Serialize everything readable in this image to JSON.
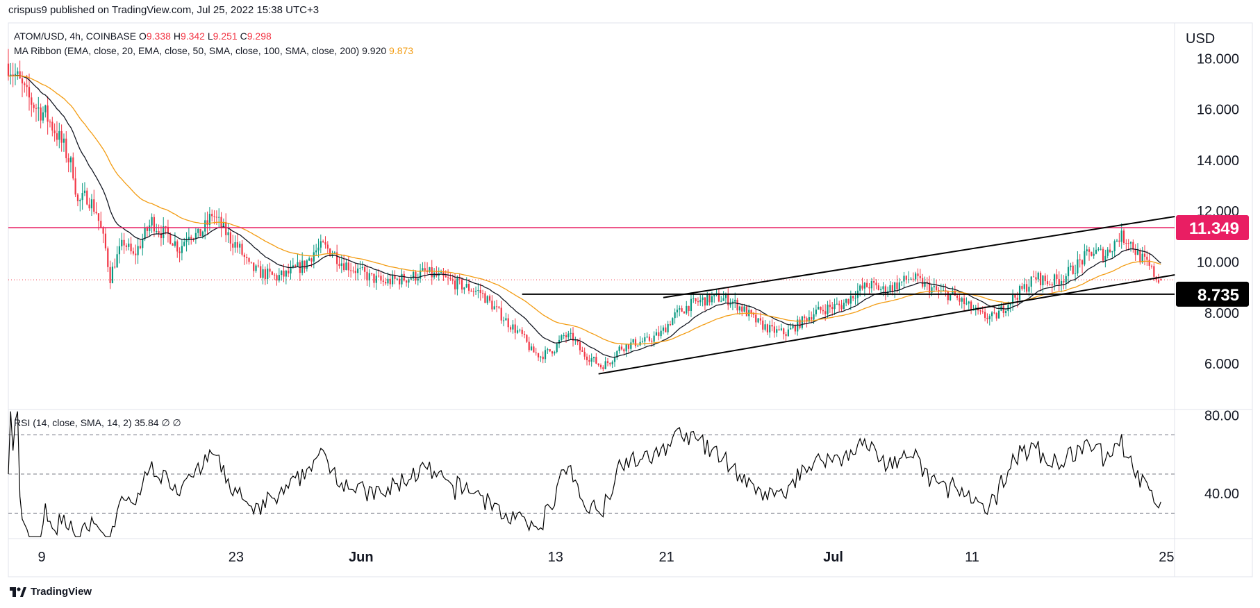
{
  "header": {
    "text": "crispus9 published on TradingView.com, Jul 25, 2022 15:38 UTC+3"
  },
  "legend": {
    "symbol_line": "ATOM/USD, 4h, COINBASE",
    "ohlc": [
      {
        "k": "O",
        "v": "9.338"
      },
      {
        "k": "H",
        "v": "9.342"
      },
      {
        "k": "L",
        "v": "9.251"
      },
      {
        "k": "C",
        "v": "9.298"
      }
    ],
    "ma_label": "MA Ribbon (EMA, close, 20, EMA, close, 50, SMA, close, 100, SMA, close, 200)",
    "ma_val1": "9.920",
    "ma_val2": "9.873",
    "rsi_label": "RSI (14, close, SMA, 14, 2)",
    "rsi_val": "35.84",
    "rsi_extra": "∅  ∅"
  },
  "footer": {
    "brand": "TradingView"
  },
  "colors": {
    "up": "#089981",
    "down": "#f23645",
    "ma_fast": "#131722",
    "ma_slow": "#f39c12",
    "resistance": "#e91e63",
    "support": "#000000",
    "grid_border": "#e0e3eb"
  },
  "chart_data": [
    {
      "type": "candlestick",
      "title": "ATOM/USD, 4h, COINBASE",
      "currency_label": "USD",
      "y_ticks": [
        "18.000",
        "16.000",
        "14.000",
        "12.000",
        "10.000",
        "8.000",
        "6.000"
      ],
      "y_tick_values": [
        18,
        16,
        14,
        12,
        10,
        8,
        6
      ],
      "ylim": [
        4.2,
        19.4
      ],
      "x_ticks": [
        {
          "label": "9",
          "bold": false
        },
        {
          "label": "23",
          "bold": false
        },
        {
          "label": "Jun",
          "bold": true
        },
        {
          "label": "13",
          "bold": false
        },
        {
          "label": "21",
          "bold": false
        },
        {
          "label": "Jul",
          "bold": true
        },
        {
          "label": "11",
          "bold": false
        },
        {
          "label": "25",
          "bold": false
        }
      ],
      "x_tick_index": [
        0,
        84,
        138,
        222,
        270,
        342,
        402,
        486
      ],
      "close_path": [
        [
          0,
          17.8
        ],
        [
          4,
          17.2
        ],
        [
          8,
          16.5
        ],
        [
          12,
          16.1
        ],
        [
          16,
          15.8
        ],
        [
          20,
          15.2
        ],
        [
          24,
          14.5
        ],
        [
          28,
          13.6
        ],
        [
          30,
          12.3
        ],
        [
          34,
          12.6
        ],
        [
          38,
          12.0
        ],
        [
          42,
          10.5
        ],
        [
          44,
          9.4
        ],
        [
          46,
          10.0
        ],
        [
          50,
          10.8
        ],
        [
          54,
          10.2
        ],
        [
          58,
          10.9
        ],
        [
          62,
          11.6
        ],
        [
          66,
          11.2
        ],
        [
          70,
          11.0
        ],
        [
          74,
          10.5
        ],
        [
          78,
          11.2
        ],
        [
          82,
          11.0
        ],
        [
          86,
          11.5
        ],
        [
          88,
          11.9
        ],
        [
          92,
          11.4
        ],
        [
          96,
          10.9
        ],
        [
          100,
          10.5
        ],
        [
          104,
          9.8
        ],
        [
          108,
          9.6
        ],
        [
          112,
          9.5
        ],
        [
          116,
          9.4
        ],
        [
          120,
          9.5
        ],
        [
          124,
          9.7
        ],
        [
          128,
          9.9
        ],
        [
          132,
          10.4
        ],
        [
          136,
          10.6
        ],
        [
          140,
          10.4
        ],
        [
          144,
          10.0
        ],
        [
          150,
          9.7
        ],
        [
          156,
          9.4
        ],
        [
          162,
          9.2
        ],
        [
          168,
          9.3
        ],
        [
          174,
          9.4
        ],
        [
          180,
          9.6
        ],
        [
          186,
          9.4
        ],
        [
          192,
          9.2
        ],
        [
          198,
          9.0
        ],
        [
          204,
          8.8
        ],
        [
          210,
          8.2
        ],
        [
          216,
          7.6
        ],
        [
          222,
          7.1
        ],
        [
          226,
          6.5
        ],
        [
          230,
          6.3
        ],
        [
          236,
          6.6
        ],
        [
          240,
          7.1
        ],
        [
          244,
          7.0
        ],
        [
          248,
          6.4
        ],
        [
          252,
          6.2
        ],
        [
          256,
          5.9
        ],
        [
          260,
          6.1
        ],
        [
          264,
          6.6
        ],
        [
          270,
          6.8
        ],
        [
          276,
          6.9
        ],
        [
          282,
          7.2
        ],
        [
          288,
          7.9
        ],
        [
          294,
          8.3
        ],
        [
          300,
          8.5
        ],
        [
          306,
          8.6
        ],
        [
          312,
          8.5
        ],
        [
          318,
          8.1
        ],
        [
          324,
          7.6
        ],
        [
          330,
          7.3
        ],
        [
          336,
          7.2
        ],
        [
          342,
          7.6
        ],
        [
          348,
          8.0
        ],
        [
          354,
          8.2
        ],
        [
          360,
          8.3
        ],
        [
          366,
          8.8
        ],
        [
          372,
          9.1
        ],
        [
          378,
          8.9
        ],
        [
          384,
          9.1
        ],
        [
          390,
          9.4
        ],
        [
          396,
          9.1
        ],
        [
          402,
          8.8
        ],
        [
          408,
          8.7
        ],
        [
          414,
          8.3
        ],
        [
          420,
          7.9
        ],
        [
          426,
          7.8
        ],
        [
          432,
          8.4
        ],
        [
          438,
          8.9
        ],
        [
          444,
          9.4
        ],
        [
          450,
          9.2
        ],
        [
          456,
          9.4
        ],
        [
          462,
          9.9
        ],
        [
          468,
          10.4
        ],
        [
          474,
          10.3
        ],
        [
          480,
          11.0
        ],
        [
          484,
          10.9
        ],
        [
          488,
          10.3
        ],
        [
          492,
          9.9
        ],
        [
          496,
          9.4
        ],
        [
          498,
          9.3
        ]
      ],
      "resistance_level": {
        "label": "11.349",
        "value": 11.349
      },
      "support_level": {
        "label": "8.735",
        "value": 8.735
      },
      "last_price": 9.298,
      "channel_lower": [
        [
          255,
          5.6
        ],
        [
          498,
          9.4
        ]
      ],
      "channel_upper": [
        [
          283,
          8.6
        ],
        [
          498,
          11.7
        ]
      ],
      "ema20_end": 9.92,
      "ema50_end": 9.873
    },
    {
      "type": "line",
      "title": "RSI (14, close, SMA, 14, 2)",
      "y_ticks": [
        "80.00",
        "40.00"
      ],
      "y_tick_values": [
        80,
        40
      ],
      "ylim": [
        17,
        83
      ],
      "bands": [
        70,
        50,
        30
      ],
      "last_value": 35.84
    }
  ]
}
